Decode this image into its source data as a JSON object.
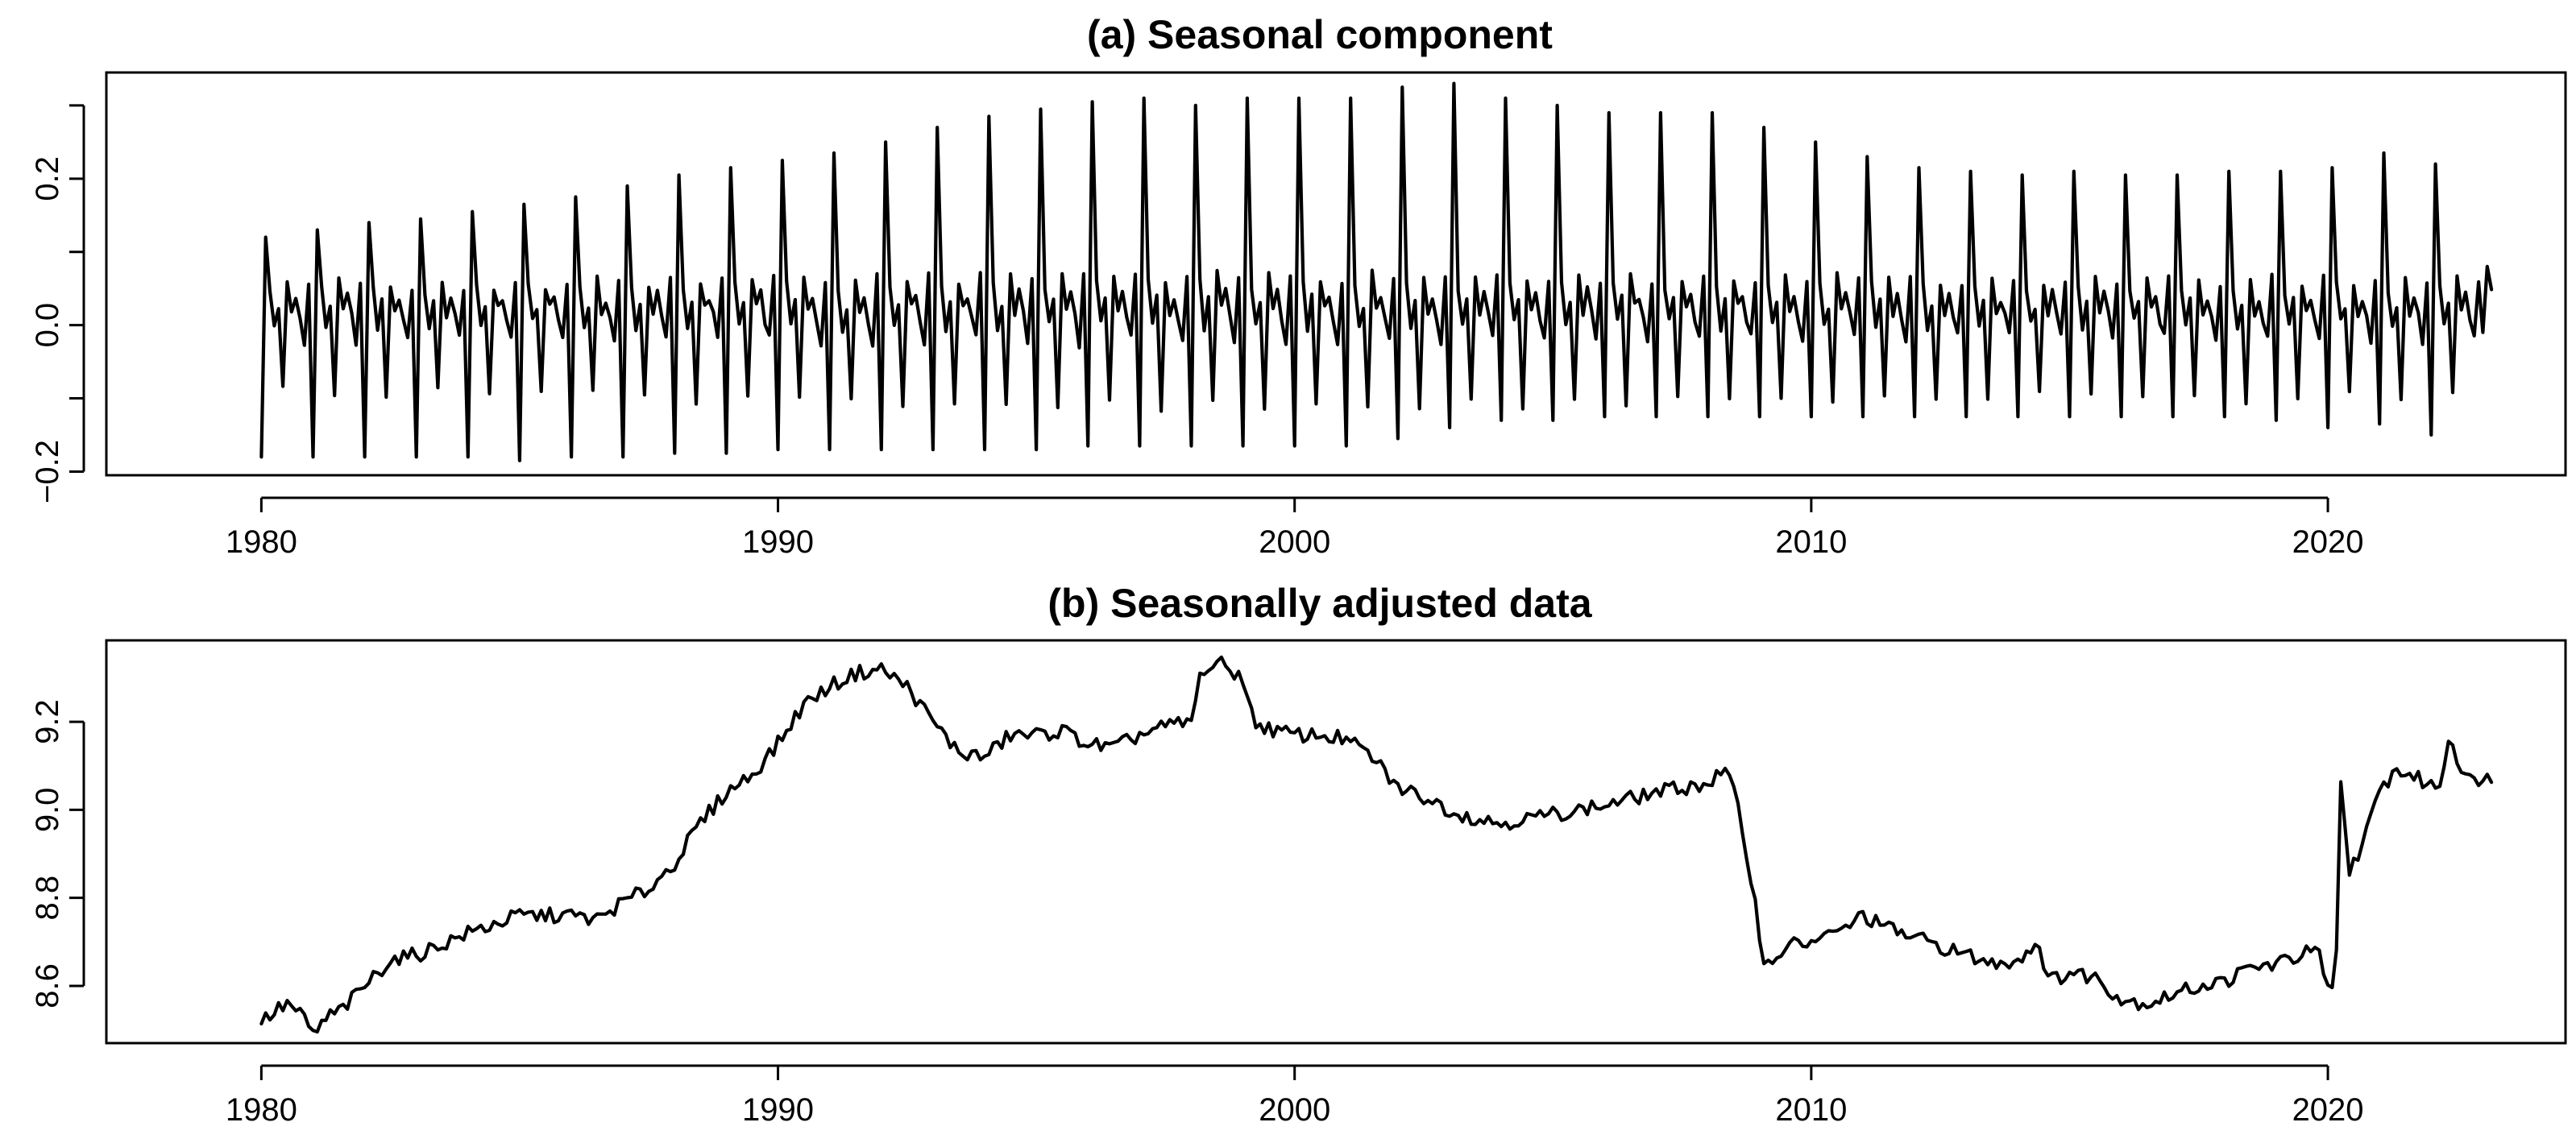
{
  "chart_data": [
    {
      "type": "line",
      "title": "(a) Seasonal component",
      "xlabel": "",
      "ylabel": "",
      "xlim": [
        1977.0,
        2024.6
      ],
      "ylim": [
        -0.205,
        0.345
      ],
      "x_ticks": [
        1980,
        1990,
        2000,
        2010,
        2020
      ],
      "x_tick_labels": [
        "1980",
        "1990",
        "2000",
        "2010",
        "2020"
      ],
      "y_ticks": [
        -0.2,
        -0.1,
        0.0,
        0.1,
        0.2,
        0.3
      ],
      "y_tick_labels": [
        "−0.2",
        "",
        "0.0",
        "",
        "0.2",
        ""
      ],
      "grid": false,
      "series": [
        {
          "name": "Seasonal component",
          "color": "#000000",
          "start_year": 1980.0,
          "end_year": 2023.2,
          "frequency": "monthly",
          "monthly_pattern": [
            -0.18,
            0.12,
            0.05,
            0.0,
            0.03,
            -0.1,
            0.06,
            0.02,
            0.04,
            0.01,
            -0.02,
            0.06
          ],
          "yearly_peak": [
            [
              1980,
              0.12
            ],
            [
              1981,
              0.13
            ],
            [
              1982,
              0.14
            ],
            [
              1983,
              0.145
            ],
            [
              1984,
              0.155
            ],
            [
              1985,
              0.165
            ],
            [
              1986,
              0.175
            ],
            [
              1987,
              0.19
            ],
            [
              1988,
              0.205
            ],
            [
              1989,
              0.215
            ],
            [
              1990,
              0.225
            ],
            [
              1991,
              0.235
            ],
            [
              1992,
              0.25
            ],
            [
              1993,
              0.27
            ],
            [
              1994,
              0.285
            ],
            [
              1995,
              0.295
            ],
            [
              1996,
              0.305
            ],
            [
              1997,
              0.31
            ],
            [
              1998,
              0.3
            ],
            [
              1999,
              0.31
            ],
            [
              2000,
              0.31
            ],
            [
              2001,
              0.31
            ],
            [
              2002,
              0.325
            ],
            [
              2003,
              0.33
            ],
            [
              2004,
              0.31
            ],
            [
              2005,
              0.3
            ],
            [
              2006,
              0.29
            ],
            [
              2007,
              0.29
            ],
            [
              2008,
              0.29
            ],
            [
              2009,
              0.27
            ],
            [
              2010,
              0.25
            ],
            [
              2011,
              0.23
            ],
            [
              2012,
              0.215
            ],
            [
              2013,
              0.21
            ],
            [
              2014,
              0.205
            ],
            [
              2015,
              0.21
            ],
            [
              2016,
              0.205
            ],
            [
              2017,
              0.205
            ],
            [
              2018,
              0.21
            ],
            [
              2019,
              0.21
            ],
            [
              2020,
              0.215
            ],
            [
              2021,
              0.235
            ],
            [
              2022,
              0.22
            ],
            [
              2023,
              0.08
            ]
          ],
          "yearly_trough": [
            [
              1980,
              -0.18
            ],
            [
              1981,
              -0.18
            ],
            [
              1982,
              -0.18
            ],
            [
              1983,
              -0.18
            ],
            [
              1984,
              -0.18
            ],
            [
              1985,
              -0.185
            ],
            [
              1986,
              -0.18
            ],
            [
              1987,
              -0.18
            ],
            [
              1988,
              -0.175
            ],
            [
              1989,
              -0.175
            ],
            [
              1990,
              -0.17
            ],
            [
              1991,
              -0.17
            ],
            [
              1992,
              -0.17
            ],
            [
              1993,
              -0.17
            ],
            [
              1994,
              -0.17
            ],
            [
              1995,
              -0.17
            ],
            [
              1996,
              -0.165
            ],
            [
              1997,
              -0.165
            ],
            [
              1998,
              -0.165
            ],
            [
              1999,
              -0.165
            ],
            [
              2000,
              -0.165
            ],
            [
              2001,
              -0.165
            ],
            [
              2002,
              -0.155
            ],
            [
              2003,
              -0.14
            ],
            [
              2004,
              -0.13
            ],
            [
              2005,
              -0.13
            ],
            [
              2006,
              -0.125
            ],
            [
              2007,
              -0.125
            ],
            [
              2008,
              -0.125
            ],
            [
              2009,
              -0.125
            ],
            [
              2010,
              -0.125
            ],
            [
              2011,
              -0.125
            ],
            [
              2012,
              -0.125
            ],
            [
              2013,
              -0.125
            ],
            [
              2014,
              -0.125
            ],
            [
              2015,
              -0.125
            ],
            [
              2016,
              -0.125
            ],
            [
              2017,
              -0.125
            ],
            [
              2018,
              -0.125
            ],
            [
              2019,
              -0.13
            ],
            [
              2020,
              -0.14
            ],
            [
              2021,
              -0.135
            ],
            [
              2022,
              -0.15
            ],
            [
              2023,
              -0.01
            ]
          ]
        }
      ]
    },
    {
      "type": "line",
      "title": "(b) Seasonally adjusted data",
      "xlabel": "",
      "ylabel": "",
      "xlim": [
        1977.0,
        2024.6
      ],
      "ylim": [
        8.47,
        9.385
      ],
      "x_ticks": [
        1980,
        1990,
        2000,
        2010,
        2020
      ],
      "x_tick_labels": [
        "1980",
        "1990",
        "2000",
        "2010",
        "2020"
      ],
      "y_ticks": [
        8.6,
        8.8,
        9.0,
        9.2
      ],
      "y_tick_labels": [
        "8.6",
        "8.8",
        "9.0",
        "9.2"
      ],
      "grid": false,
      "series": [
        {
          "name": "Seasonally adjusted data",
          "color": "#000000",
          "frequency": "monthly",
          "anchors": [
            [
              1980.0,
              8.52
            ],
            [
              1980.5,
              8.56
            ],
            [
              1980.8,
              8.53
            ],
            [
              1981.0,
              8.49
            ],
            [
              1981.3,
              8.53
            ],
            [
              1981.6,
              8.55
            ],
            [
              1982.0,
              8.6
            ],
            [
              1982.5,
              8.66
            ],
            [
              1983.0,
              8.67
            ],
            [
              1984.0,
              8.72
            ],
            [
              1985.0,
              8.76
            ],
            [
              1986.0,
              8.76
            ],
            [
              1986.5,
              8.75
            ],
            [
              1987.0,
              8.79
            ],
            [
              1987.5,
              8.82
            ],
            [
              1988.0,
              8.88
            ],
            [
              1988.5,
              8.97
            ],
            [
              1989.0,
              9.04
            ],
            [
              1989.5,
              9.08
            ],
            [
              1990.0,
              9.15
            ],
            [
              1990.5,
              9.24
            ],
            [
              1991.0,
              9.28
            ],
            [
              1991.5,
              9.31
            ],
            [
              1992.0,
              9.32
            ],
            [
              1992.5,
              9.28
            ],
            [
              1993.0,
              9.2
            ],
            [
              1993.5,
              9.13
            ],
            [
              1994.0,
              9.12
            ],
            [
              1994.5,
              9.17
            ],
            [
              1995.0,
              9.17
            ],
            [
              1995.5,
              9.18
            ],
            [
              1996.0,
              9.15
            ],
            [
              1996.5,
              9.14
            ],
            [
              1997.0,
              9.17
            ],
            [
              1997.5,
              9.19
            ],
            [
              1998.0,
              9.2
            ],
            [
              1998.2,
              9.32
            ],
            [
              1998.6,
              9.33
            ],
            [
              1999.0,
              9.3
            ],
            [
              1999.2,
              9.2
            ],
            [
              1999.6,
              9.18
            ],
            [
              2000.0,
              9.17
            ],
            [
              2000.5,
              9.17
            ],
            [
              2001.0,
              9.16
            ],
            [
              2001.5,
              9.12
            ],
            [
              2002.0,
              9.05
            ],
            [
              2002.5,
              9.03
            ],
            [
              2003.0,
              9.0
            ],
            [
              2003.5,
              8.98
            ],
            [
              2004.0,
              8.97
            ],
            [
              2005.0,
              8.99
            ],
            [
              2006.0,
              9.01
            ],
            [
              2007.0,
              9.04
            ],
            [
              2008.0,
              9.06
            ],
            [
              2008.35,
              9.09
            ],
            [
              2008.6,
              9.0
            ],
            [
              2008.9,
              8.8
            ],
            [
              2009.1,
              8.64
            ],
            [
              2009.5,
              8.69
            ],
            [
              2010.0,
              8.7
            ],
            [
              2010.5,
              8.72
            ],
            [
              2011.0,
              8.76
            ],
            [
              2011.5,
              8.73
            ],
            [
              2012.0,
              8.71
            ],
            [
              2012.5,
              8.69
            ],
            [
              2013.0,
              8.67
            ],
            [
              2013.5,
              8.65
            ],
            [
              2014.0,
              8.66
            ],
            [
              2014.4,
              8.7
            ],
            [
              2014.6,
              8.61
            ],
            [
              2015.0,
              8.63
            ],
            [
              2015.5,
              8.62
            ],
            [
              2016.0,
              8.57
            ],
            [
              2016.5,
              8.56
            ],
            [
              2017.0,
              8.58
            ],
            [
              2017.5,
              8.6
            ],
            [
              2018.0,
              8.61
            ],
            [
              2018.5,
              8.64
            ],
            [
              2019.0,
              8.65
            ],
            [
              2019.5,
              8.67
            ],
            [
              2019.8,
              8.69
            ],
            [
              2019.95,
              8.59
            ],
            [
              2020.15,
              8.59
            ],
            [
              2020.25,
              9.07
            ],
            [
              2020.4,
              8.86
            ],
            [
              2020.7,
              8.93
            ],
            [
              2021.0,
              9.04
            ],
            [
              2021.3,
              9.09
            ],
            [
              2021.6,
              9.08
            ],
            [
              2021.9,
              9.06
            ],
            [
              2022.15,
              9.05
            ],
            [
              2022.35,
              9.17
            ],
            [
              2022.6,
              9.09
            ],
            [
              2022.8,
              9.06
            ],
            [
              2023.0,
              9.08
            ],
            [
              2023.2,
              9.06
            ]
          ]
        }
      ]
    }
  ]
}
